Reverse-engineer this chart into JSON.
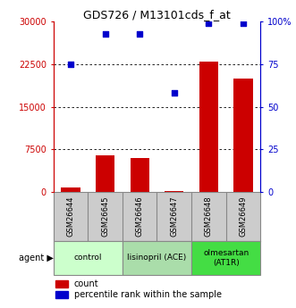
{
  "title": "GDS726 / M13101cds_f_at",
  "categories": [
    "GSM26644",
    "GSM26645",
    "GSM26646",
    "GSM26647",
    "GSM26648",
    "GSM26649"
  ],
  "counts": [
    800,
    6500,
    6000,
    200,
    23000,
    20000
  ],
  "percentiles": [
    75,
    93,
    93,
    58,
    99,
    99
  ],
  "ylim_left": [
    0,
    30000
  ],
  "ylim_right": [
    0,
    100
  ],
  "yticks_left": [
    0,
    7500,
    15000,
    22500,
    30000
  ],
  "ytick_labels_left": [
    "0",
    "7500",
    "15000",
    "22500",
    "30000"
  ],
  "yticks_right": [
    0,
    25,
    50,
    75,
    100
  ],
  "ytick_labels_right": [
    "0",
    "25",
    "50",
    "75",
    "100%"
  ],
  "bar_color": "#cc0000",
  "dot_color": "#0000cc",
  "agent_groups": [
    {
      "label": "control",
      "cols": [
        0,
        1
      ],
      "color": "#ccffcc"
    },
    {
      "label": "lisinopril (ACE)",
      "cols": [
        2,
        3
      ],
      "color": "#aaddaa"
    },
    {
      "label": "olmesartan\n(AT1R)",
      "cols": [
        4,
        5
      ],
      "color": "#44dd44"
    }
  ],
  "agent_label": "agent",
  "legend_count_label": "count",
  "legend_pct_label": "percentile rank within the sample",
  "title_fontsize": 9,
  "axis_color_left": "#cc0000",
  "axis_color_right": "#0000cc",
  "background_color": "#ffffff",
  "grid_color": "#000000",
  "gsm_bg": "#cccccc",
  "gsm_border": "#888888"
}
